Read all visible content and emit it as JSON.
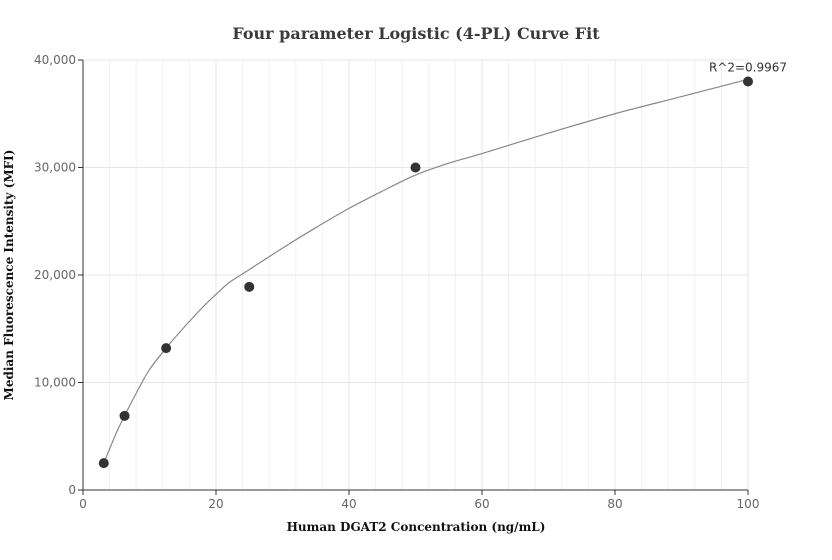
{
  "chart_data": {
    "type": "scatter",
    "title": "Four parameter Logistic (4-PL) Curve Fit",
    "xlabel": "Human DGAT2 Concentration (ng/mL)",
    "ylabel": "Median Fluorescence Intensity (MFI)",
    "xlim": [
      0,
      100
    ],
    "ylim": [
      0,
      40000
    ],
    "x_ticks": [
      0,
      20,
      40,
      60,
      80,
      100
    ],
    "x_tick_labels": [
      "0",
      "20",
      "40",
      "60",
      "80",
      "100"
    ],
    "y_ticks": [
      0,
      10000,
      20000,
      30000,
      40000
    ],
    "y_tick_labels": [
      "0",
      "10,000",
      "20,000",
      "30,000",
      "40,000"
    ],
    "grid": true,
    "legend": "none",
    "points": [
      {
        "x": 3.125,
        "y": 2500
      },
      {
        "x": 6.25,
        "y": 6900
      },
      {
        "x": 12.5,
        "y": 13200
      },
      {
        "x": 25,
        "y": 18900
      },
      {
        "x": 50,
        "y": 30000
      },
      {
        "x": 100,
        "y": 38000
      }
    ],
    "fit_curve": {
      "x": [
        3.125,
        5,
        6.25,
        8,
        10,
        12.5,
        15,
        18,
        20,
        22,
        25,
        30,
        35,
        40,
        45,
        50,
        55,
        60,
        70,
        80,
        90,
        100
      ],
      "y": [
        2500,
        5300,
        6900,
        9000,
        11200,
        13200,
        15000,
        17000,
        18200,
        19300,
        20500,
        22500,
        24400,
        26200,
        27800,
        29300,
        30400,
        31300,
        33200,
        35000,
        36600,
        38200
      ]
    },
    "annotation": {
      "text": "R^2=0.9967",
      "x": 100,
      "y": 38000
    },
    "colors": {
      "point": "#333333",
      "curve": "#888888",
      "grid": "#e6e6f0",
      "axis": "#333333"
    }
  }
}
